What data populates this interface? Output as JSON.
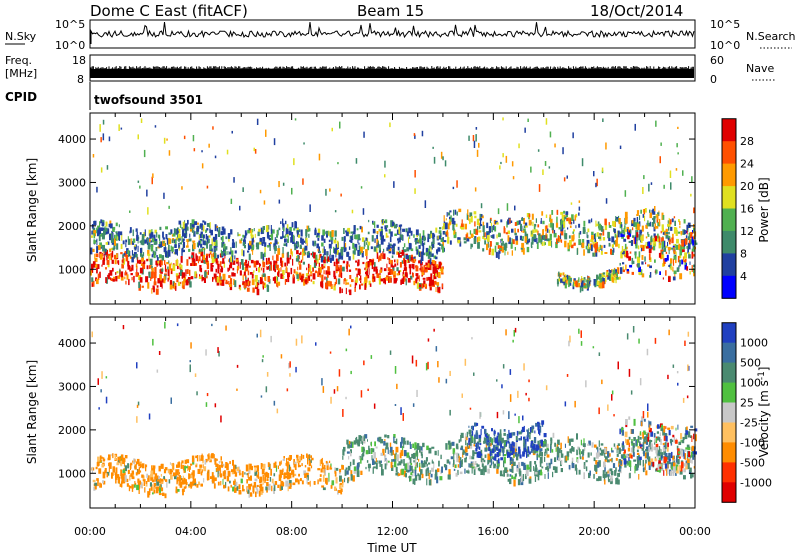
{
  "header": {
    "station": "Dome C East (fitACF)",
    "beam": "Beam 15",
    "date": "18/Oct/2014"
  },
  "nsky_panel": {
    "left_label": "N.Sky",
    "right_label": "N.Search",
    "tick_top": "10^5",
    "tick_bottom": "10^0",
    "tick_top_right": "10^5",
    "tick_bottom_right": "10^0"
  },
  "freq_panel": {
    "left_label_line1": "Freq.",
    "left_label_line2": "[MHz]",
    "right_label": "Nave",
    "left_ticks": [
      "18",
      "8"
    ],
    "right_ticks": [
      "60",
      "0"
    ]
  },
  "cpid_panel": {
    "label": "CPID",
    "program": "twofsound 3501"
  },
  "chart_data": [
    {
      "type": "heatmap",
      "panel": "power",
      "ylabel": "Slant Range [km]",
      "ylim": [
        200,
        4600
      ],
      "yticks": [
        "1000",
        "2000",
        "3000",
        "4000"
      ],
      "xlim": [
        0,
        24
      ],
      "colorbar_label": "Power [dB]",
      "colorbar_ticks": [
        "4",
        "8",
        "12",
        "16",
        "20",
        "24",
        "28"
      ],
      "colors": [
        "#0000ff",
        "#2040a0",
        "#3e8a6a",
        "#50b050",
        "#e0e020",
        "#ff9a00",
        "#ff5000",
        "#e00000"
      ],
      "echo_bands": [
        {
          "t_start": 0.0,
          "t_end": 14.0,
          "range_center": 1000,
          "range_halfwidth": 350,
          "level": "high"
        },
        {
          "t_start": 0.0,
          "t_end": 14.0,
          "range_center": 1700,
          "range_halfwidth": 350,
          "level": "low"
        },
        {
          "t_start": 14.0,
          "t_end": 24.0,
          "range_center": 1900,
          "range_halfwidth": 400,
          "level": "mid"
        },
        {
          "t_start": 18.5,
          "t_end": 21.0,
          "range_center": 850,
          "range_halfwidth": 120,
          "level": "mid"
        },
        {
          "t_start": 21.0,
          "t_end": 24.0,
          "range_center": 1400,
          "range_halfwidth": 500,
          "level": "mixed"
        }
      ]
    },
    {
      "type": "heatmap",
      "panel": "velocity",
      "ylabel": "Slant Range [km]",
      "ylim": [
        200,
        4600
      ],
      "yticks": [
        "1000",
        "2000",
        "3000",
        "4000"
      ],
      "xlim": [
        0,
        24
      ],
      "xlabel": "Time UT",
      "xticks": [
        "00:00",
        "04:00",
        "08:00",
        "12:00",
        "16:00",
        "20:00",
        "00:00"
      ],
      "colorbar_label": "Velocity [m s^-1]",
      "colorbar_ticks": [
        "1000",
        "500",
        "100",
        "25",
        "-25",
        "-100",
        "-500",
        "-1000"
      ],
      "colors": [
        "#2040c0",
        "#3a6ea0",
        "#4a8a70",
        "#50c040",
        "#c8c8c8",
        "#ffc060",
        "#ff8c00",
        "#ff3000",
        "#e00000"
      ],
      "echo_bands": [
        {
          "t_start": 0.0,
          "t_end": 10.0,
          "range_center": 1000,
          "range_halfwidth": 350,
          "level": "orange"
        },
        {
          "t_start": 10.0,
          "t_end": 24.0,
          "range_center": 1400,
          "range_halfwidth": 450,
          "level": "green"
        },
        {
          "t_start": 15.0,
          "t_end": 18.0,
          "range_center": 1800,
          "range_halfwidth": 350,
          "level": "blue"
        },
        {
          "t_start": 21.0,
          "t_end": 24.0,
          "range_center": 1700,
          "range_halfwidth": 550,
          "level": "mixed"
        }
      ]
    }
  ]
}
